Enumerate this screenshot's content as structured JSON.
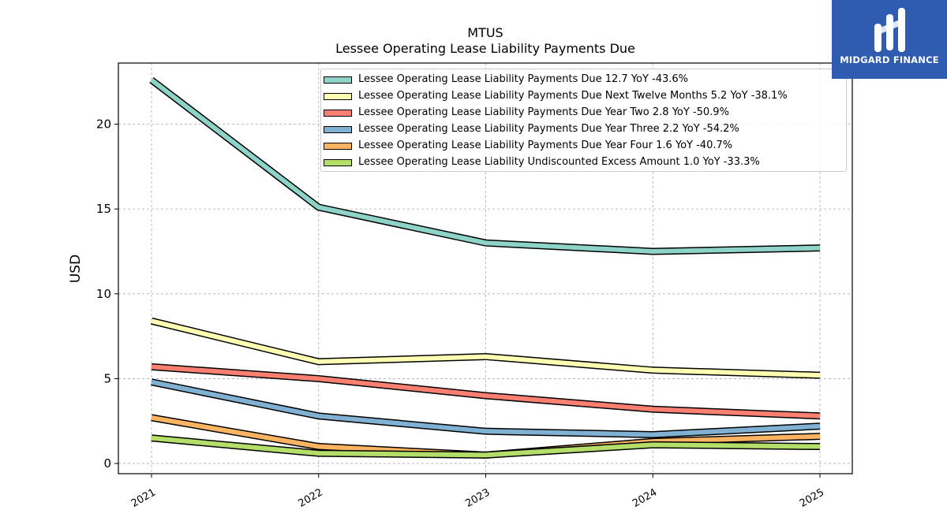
{
  "chart_data": {
    "type": "line",
    "title": "MTUS",
    "subtitle": "Lessee Operating Lease Liability Payments Due",
    "xlabel": "",
    "ylabel": "USD",
    "categories": [
      "2021",
      "2022",
      "2023",
      "2024",
      "2025"
    ],
    "ylim": [
      -0.6,
      23.6
    ],
    "yticks": [
      0,
      5,
      10,
      15,
      20
    ],
    "grid": true,
    "legend_position": "top-right",
    "series": [
      {
        "name": "Lessee Operating Lease Liability Payments Due  12.7 YoY -43.6%",
        "color": "#8dd3c7",
        "values": [
          22.6,
          15.1,
          13.0,
          12.5,
          12.7
        ]
      },
      {
        "name": "Lessee Operating Lease Liability Payments Due Next Twelve Months  5.2 YoY -38.1%",
        "color": "#ffffb3",
        "values": [
          8.4,
          6.0,
          6.3,
          5.5,
          5.2
        ]
      },
      {
        "name": "Lessee Operating Lease Liability Payments Due Year Two  2.8 YoY -50.9%",
        "color": "#fb8072",
        "values": [
          5.7,
          5.0,
          4.0,
          3.2,
          2.8
        ]
      },
      {
        "name": "Lessee Operating Lease Liability Payments Due Year Three  2.2 YoY -54.2%",
        "color": "#80b1d3",
        "values": [
          4.8,
          2.8,
          1.9,
          1.7,
          2.2
        ]
      },
      {
        "name": "Lessee Operating Lease Liability Payments Due Year Four  1.6 YoY -40.7%",
        "color": "#fdb462",
        "values": [
          2.7,
          1.0,
          0.5,
          1.3,
          1.6
        ]
      },
      {
        "name": "Lessee Operating Lease Liability Undiscounted Excess Amount  1.0 YoY -33.3%",
        "color": "#b3de69",
        "values": [
          1.5,
          0.6,
          0.5,
          1.1,
          1.0
        ]
      }
    ]
  },
  "logo": {
    "text": "MIDGARD FINANCE",
    "color": "#2f5bb1"
  }
}
